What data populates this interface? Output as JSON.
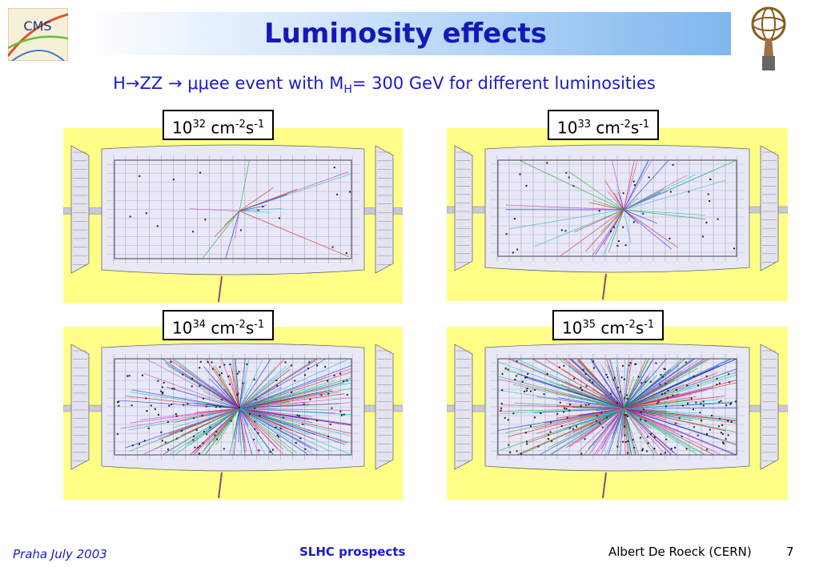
{
  "slide": {
    "title": "Luminosity effects",
    "subtitle_main": "H→ZZ → μμee event with M",
    "subtitle_sub": "H",
    "subtitle_rest": "= 300 GeV for different luminosities"
  },
  "logo": {
    "text": "CMS"
  },
  "panels": [
    {
      "base": "10",
      "exp": "32",
      "unit1": " cm",
      "unit1_exp": "-2",
      "unit2": "s",
      "unit2_exp": "-1",
      "density": 0.04
    },
    {
      "base": "10",
      "exp": "33",
      "unit1": " cm",
      "unit1_exp": "-2",
      "unit2": "s",
      "unit2_exp": "-1",
      "density": 0.15
    },
    {
      "base": "10",
      "exp": "34",
      "unit1": " cm",
      "unit1_exp": "-2",
      "unit2": "s",
      "unit2_exp": "-1",
      "density": 0.7
    },
    {
      "base": "10",
      "exp": "35",
      "unit1": " cm",
      "unit1_exp": "-2",
      "unit2": "s",
      "unit2_exp": "-1",
      "density": 1.0
    }
  ],
  "footer": {
    "left": "Praha July 2003",
    "center": "SLHC prospects",
    "right": "Albert De Roeck (CERN)",
    "page": "7"
  },
  "colors": {
    "panel_bg": "#ffff88",
    "title_text": "#1418b8",
    "accent_blue": "#1a1acc"
  }
}
